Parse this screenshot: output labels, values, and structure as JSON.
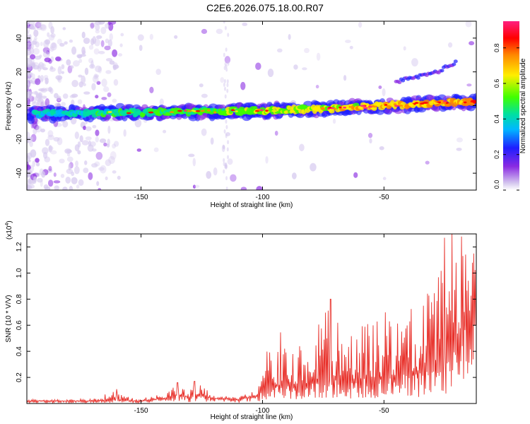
{
  "chart_data": [
    {
      "type": "heatmap",
      "title": "C2E6.2026.075.18.00.R07",
      "xlabel": "Height of straight line (km)",
      "ylabel": "Frequency (Hz)",
      "xlim": [
        -197,
        -12
      ],
      "ylim": [
        -50,
        50
      ],
      "xticks": [
        -150,
        -100,
        -50
      ],
      "yticks": [
        -40,
        -20,
        0,
        20,
        40
      ],
      "colorbar": {
        "label": "Normalized spectral amplitude",
        "range": [
          0.0,
          0.95
        ],
        "ticks": [
          "0.0",
          "0.2",
          "0.4",
          "0.6",
          "0.8"
        ],
        "colormap": [
          "#d6c9ef",
          "#8a2be2",
          "#1e1eff",
          "#00b8ff",
          "#00e0a0",
          "#40ff00",
          "#ffee00",
          "#ff8800",
          "#ff0000",
          "#ff2080"
        ]
      },
      "ridge": {
        "centre_freq_hz": [
          [
            -195,
            -5
          ],
          [
            -150,
            -4
          ],
          [
            -100,
            -3
          ],
          [
            -75,
            -2
          ],
          [
            -50,
            0
          ],
          [
            -25,
            2
          ],
          [
            -12,
            2
          ]
        ],
        "harmonic_freq_hz": [
          [
            -45,
            14
          ],
          [
            -28,
            20
          ],
          [
            -20,
            26
          ]
        ]
      }
    },
    {
      "type": "line",
      "title": "",
      "xlabel": "Height of straight line (km)",
      "ylabel": "SNR (10 * V/V)",
      "yscale_label": "(x10",
      "yscale_exp": "4",
      "xlim": [
        -197,
        -12
      ],
      "ylim": [
        0,
        1.3
      ],
      "xticks": [
        -150,
        -100,
        -50
      ],
      "yticks": [
        0.2,
        0.4,
        0.6,
        0.8,
        1.0,
        1.2
      ],
      "series": [
        {
          "name": "SNR",
          "color": "#e8302a",
          "envelope": {
            "x": [
              -197,
              -170,
              -160,
              -155,
              -150,
              -140,
              -135,
              -130,
              -128,
              -120,
              -110,
              -102,
              -98,
              -90,
              -80,
              -72,
              -65,
              -55,
              -45,
              -35,
              -30,
              -25,
              -22,
              -18,
              -15,
              -12
            ],
            "base": [
              0.02,
              0.02,
              0.03,
              0.02,
              0.02,
              0.04,
              0.07,
              0.05,
              0.07,
              0.04,
              0.03,
              0.06,
              0.14,
              0.14,
              0.16,
              0.18,
              0.18,
              0.2,
              0.22,
              0.25,
              0.3,
              0.35,
              0.45,
              0.6,
              0.7,
              0.8
            ],
            "peak": [
              0.03,
              0.04,
              0.1,
              0.05,
              0.04,
              0.08,
              0.16,
              0.1,
              0.17,
              0.07,
              0.05,
              0.12,
              0.45,
              0.6,
              0.55,
              0.75,
              0.5,
              0.72,
              0.7,
              0.78,
              0.9,
              1.2,
              1.28,
              1.25,
              1.15,
              1.05
            ]
          },
          "spikes": [
            [
              -160,
              0.11
            ],
            [
              -135,
              0.16
            ],
            [
              -128,
              0.17
            ],
            [
              -72,
              0.8
            ],
            [
              -25,
              1.27
            ],
            [
              -22,
              1.3
            ],
            [
              -18,
              1.28
            ],
            [
              -13,
              1.15
            ]
          ]
        }
      ]
    }
  ]
}
